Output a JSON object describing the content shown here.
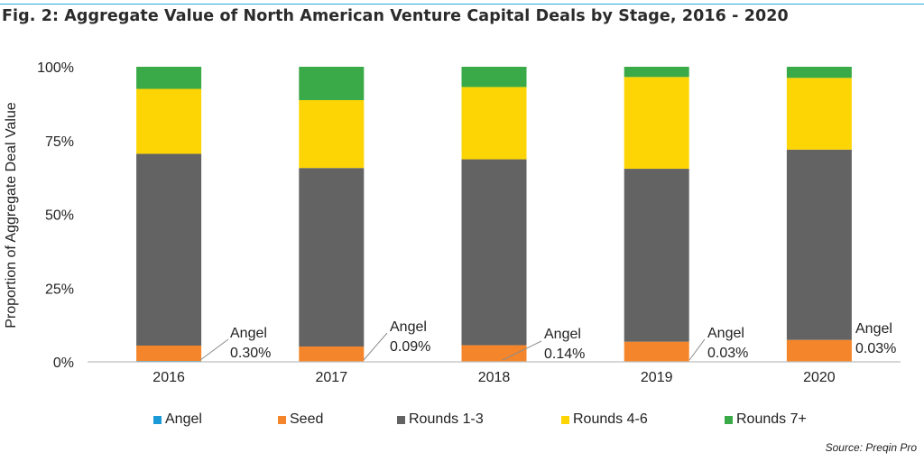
{
  "title": "Fig. 2: Aggregate Value of North American Venture Capital Deals by Stage, 2016 - 2020",
  "source": "Source: Preqin Pro",
  "chart_data": {
    "type": "bar",
    "stacked": "percent",
    "categories": [
      "2016",
      "2017",
      "2018",
      "2019",
      "2020"
    ],
    "series": [
      {
        "name": "Angel",
        "color": "#1a9ad6",
        "values": [
          0.3,
          0.09,
          0.14,
          0.03,
          0.03
        ]
      },
      {
        "name": "Seed",
        "color": "#f5852a",
        "values": [
          5.2,
          5.1,
          5.5,
          6.8,
          7.4
        ]
      },
      {
        "name": "Rounds 1-3",
        "color": "#636363",
        "values": [
          65.0,
          60.5,
          63.0,
          58.6,
          64.5
        ]
      },
      {
        "name": "Rounds 4-6",
        "color": "#fed504",
        "values": [
          22.0,
          23.0,
          24.5,
          31.1,
          24.3
        ]
      },
      {
        "name": "Rounds 7+",
        "color": "#3aaa48",
        "values": [
          7.5,
          11.31,
          6.86,
          3.47,
          3.77
        ]
      }
    ],
    "ylabel": "Proportion of Aggregate Deal Value",
    "yticks": [
      "0%",
      "25%",
      "50%",
      "75%",
      "100%"
    ],
    "ylim": [
      0,
      100
    ],
    "legend_position": "bottom",
    "grid": false,
    "annotations": [
      {
        "category": "2016",
        "text1": "Angel",
        "text2": "0.30%"
      },
      {
        "category": "2017",
        "text1": "Angel",
        "text2": "0.09%"
      },
      {
        "category": "2018",
        "text1": "Angel",
        "text2": "0.14%"
      },
      {
        "category": "2019",
        "text1": "Angel",
        "text2": "0.03%"
      },
      {
        "category": "2020",
        "text1": "Angel",
        "text2": "0.03%"
      }
    ]
  }
}
